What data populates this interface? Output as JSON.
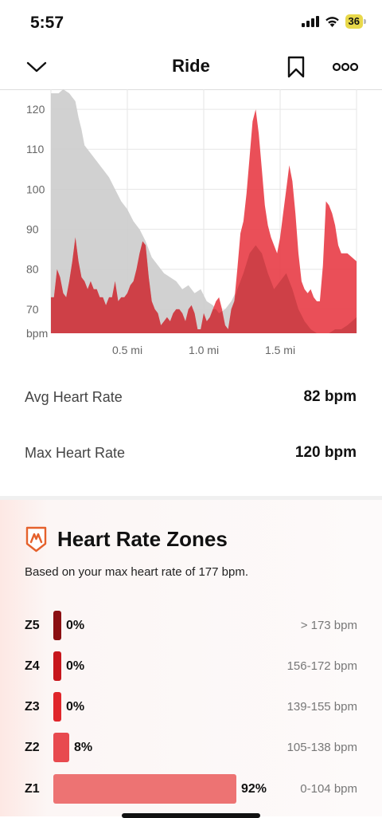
{
  "status_bar": {
    "time": "5:57",
    "battery_level": "36"
  },
  "nav": {
    "title": "Ride"
  },
  "chart_data": {
    "type": "area",
    "y_ticks": [
      "120",
      "110",
      "100",
      "90",
      "80",
      "70",
      "bpm"
    ],
    "x_ticks": [
      "0.5 mi",
      "1.0 mi",
      "1.5 mi"
    ],
    "xlabel": "",
    "ylabel": "bpm",
    "ylim": [
      64,
      125
    ],
    "xlim": [
      0,
      2.0
    ],
    "grid": true,
    "colors": {
      "heart_rate": "#e8404a",
      "elevation": "#cccccc"
    },
    "series": [
      {
        "values": [
          [
            0.0,
            73
          ],
          [
            0.02,
            73
          ],
          [
            0.04,
            80
          ],
          [
            0.06,
            78
          ],
          [
            0.08,
            74
          ],
          [
            0.1,
            73
          ],
          [
            0.12,
            77
          ],
          [
            0.14,
            82
          ],
          [
            0.16,
            88
          ],
          [
            0.18,
            82
          ],
          [
            0.2,
            78
          ],
          [
            0.22,
            77
          ],
          [
            0.24,
            75
          ],
          [
            0.26,
            77
          ],
          [
            0.28,
            75
          ],
          [
            0.3,
            75
          ],
          [
            0.32,
            73
          ],
          [
            0.34,
            73
          ],
          [
            0.36,
            71
          ],
          [
            0.38,
            73
          ],
          [
            0.4,
            73
          ],
          [
            0.42,
            77
          ],
          [
            0.44,
            72
          ],
          [
            0.46,
            73
          ],
          [
            0.48,
            73
          ],
          [
            0.5,
            74
          ],
          [
            0.52,
            76
          ],
          [
            0.54,
            77
          ],
          [
            0.56,
            80
          ],
          [
            0.58,
            84
          ],
          [
            0.6,
            87
          ],
          [
            0.62,
            86
          ],
          [
            0.64,
            78
          ],
          [
            0.66,
            72
          ],
          [
            0.68,
            70
          ],
          [
            0.7,
            69
          ],
          [
            0.72,
            66
          ],
          [
            0.74,
            67
          ],
          [
            0.76,
            68
          ],
          [
            0.78,
            67
          ],
          [
            0.8,
            69
          ],
          [
            0.82,
            70
          ],
          [
            0.84,
            70
          ],
          [
            0.86,
            69
          ],
          [
            0.88,
            67
          ],
          [
            0.9,
            70
          ],
          [
            0.92,
            71
          ],
          [
            0.94,
            69
          ],
          [
            0.96,
            65
          ],
          [
            0.98,
            65
          ],
          [
            1.0,
            69
          ],
          [
            1.02,
            67
          ],
          [
            1.04,
            68
          ],
          [
            1.06,
            70
          ],
          [
            1.08,
            72
          ],
          [
            1.1,
            73
          ],
          [
            1.12,
            70
          ],
          [
            1.14,
            66
          ],
          [
            1.16,
            65
          ],
          [
            1.18,
            70
          ],
          [
            1.2,
            72
          ],
          [
            1.22,
            80
          ],
          [
            1.24,
            89
          ],
          [
            1.26,
            92
          ],
          [
            1.28,
            99
          ],
          [
            1.3,
            108
          ],
          [
            1.32,
            117
          ],
          [
            1.34,
            120
          ],
          [
            1.36,
            114
          ],
          [
            1.38,
            105
          ],
          [
            1.4,
            96
          ],
          [
            1.42,
            91
          ],
          [
            1.44,
            88
          ],
          [
            1.46,
            86
          ],
          [
            1.48,
            84
          ],
          [
            1.5,
            88
          ],
          [
            1.52,
            94
          ],
          [
            1.54,
            100
          ],
          [
            1.56,
            106
          ],
          [
            1.58,
            102
          ],
          [
            1.6,
            94
          ],
          [
            1.62,
            84
          ],
          [
            1.64,
            77
          ],
          [
            1.66,
            75
          ],
          [
            1.68,
            74
          ],
          [
            1.7,
            75
          ],
          [
            1.72,
            73
          ],
          [
            1.74,
            72
          ],
          [
            1.76,
            72
          ],
          [
            1.78,
            81
          ],
          [
            1.8,
            97
          ],
          [
            1.82,
            96
          ],
          [
            1.84,
            94
          ],
          [
            1.86,
            91
          ],
          [
            1.88,
            86
          ],
          [
            1.9,
            84
          ],
          [
            1.92,
            84
          ],
          [
            1.94,
            84
          ],
          [
            2.0,
            82
          ]
        ]
      },
      {
        "values": [
          [
            0.0,
            124
          ],
          [
            0.05,
            124
          ],
          [
            0.08,
            125
          ],
          [
            0.12,
            124
          ],
          [
            0.16,
            122
          ],
          [
            0.18,
            118
          ],
          [
            0.2,
            115
          ],
          [
            0.22,
            111
          ],
          [
            0.26,
            109
          ],
          [
            0.3,
            107
          ],
          [
            0.34,
            105
          ],
          [
            0.38,
            103
          ],
          [
            0.42,
            100
          ],
          [
            0.46,
            97
          ],
          [
            0.5,
            95
          ],
          [
            0.54,
            92
          ],
          [
            0.58,
            90
          ],
          [
            0.62,
            87
          ],
          [
            0.66,
            83
          ],
          [
            0.7,
            81
          ],
          [
            0.74,
            79
          ],
          [
            0.78,
            78
          ],
          [
            0.82,
            77
          ],
          [
            0.86,
            75
          ],
          [
            0.9,
            76
          ],
          [
            0.94,
            74
          ],
          [
            0.98,
            75
          ],
          [
            1.02,
            72
          ],
          [
            1.06,
            71
          ],
          [
            1.1,
            69
          ],
          [
            1.14,
            70
          ],
          [
            1.18,
            72
          ],
          [
            1.22,
            75
          ],
          [
            1.26,
            79
          ],
          [
            1.3,
            84
          ],
          [
            1.34,
            86
          ],
          [
            1.38,
            84
          ],
          [
            1.42,
            79
          ],
          [
            1.46,
            75
          ],
          [
            1.5,
            77
          ],
          [
            1.54,
            79
          ],
          [
            1.58,
            75
          ],
          [
            1.62,
            70
          ],
          [
            1.66,
            67
          ],
          [
            1.7,
            65
          ],
          [
            1.74,
            64
          ],
          [
            1.78,
            64
          ],
          [
            1.82,
            64
          ],
          [
            1.86,
            65
          ],
          [
            1.9,
            65
          ],
          [
            1.94,
            66
          ],
          [
            1.98,
            67
          ],
          [
            2.0,
            68
          ]
        ]
      }
    ]
  },
  "stats": {
    "avg": {
      "label": "Avg Heart Rate",
      "value": "82 bpm"
    },
    "max": {
      "label": "Max Heart Rate",
      "value": "120 bpm"
    }
  },
  "zones": {
    "title": "Heart Rate Zones",
    "subtitle": "Based on your max heart rate of 177 bpm.",
    "items": [
      {
        "label": "Z5",
        "pct": "0%",
        "percent": 0,
        "range": "> 173 bpm",
        "color": "#8b0f12"
      },
      {
        "label": "Z4",
        "pct": "0%",
        "percent": 0,
        "range": "156-172 bpm",
        "color": "#c7161c"
      },
      {
        "label": "Z3",
        "pct": "0%",
        "percent": 0,
        "range": "139-155 bpm",
        "color": "#e0262b"
      },
      {
        "label": "Z2",
        "pct": "8%",
        "percent": 8,
        "range": "105-138 bpm",
        "color": "#e84a4f"
      },
      {
        "label": "Z1",
        "pct": "92%",
        "percent": 92,
        "range": "0-104 bpm",
        "color": "#ed7373"
      }
    ]
  }
}
